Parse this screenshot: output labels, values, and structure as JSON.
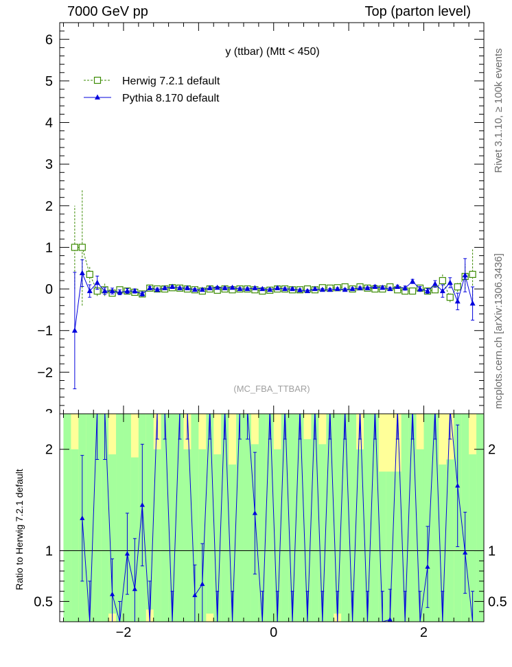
{
  "header": {
    "left": "7000 GeV pp",
    "right": "Top (parton level)"
  },
  "side": {
    "rivet": "Rivet 3.1.10, ≥ 100k events",
    "url": "mcplots.cern.ch [arXiv:1306.3436]"
  },
  "colors": {
    "herwig": "#3a8a00",
    "pythia": "#0000dd",
    "band_inner": "#a4ff9c",
    "band_outer": "#ffff99"
  },
  "chart_data": [
    {
      "type": "line",
      "title": "y (ttbar) (Mtt < 450)",
      "watermark": "(MC_FBA_TTBAR)",
      "xlim": [
        -2.85,
        2.8
      ],
      "ylim": [
        -3,
        6.4
      ],
      "yticks": [
        -2,
        -1,
        0,
        1,
        2,
        3,
        4,
        5,
        6
      ],
      "ytick_labels": [
        "−2",
        "−1",
        "0",
        "1",
        "2",
        "3",
        "4",
        "5",
        "6"
      ],
      "legend_position": "top-left",
      "grid": false,
      "x": [
        -2.65,
        -2.55,
        -2.45,
        -2.35,
        -2.25,
        -2.15,
        -2.05,
        -1.95,
        -1.85,
        -1.75,
        -1.65,
        -1.55,
        -1.45,
        -1.35,
        -1.25,
        -1.15,
        -1.05,
        -0.95,
        -0.85,
        -0.75,
        -0.65,
        -0.55,
        -0.45,
        -0.35,
        -0.25,
        -0.15,
        -0.05,
        0.05,
        0.15,
        0.25,
        0.35,
        0.45,
        0.55,
        0.65,
        0.75,
        0.85,
        0.95,
        1.05,
        1.15,
        1.25,
        1.35,
        1.45,
        1.55,
        1.65,
        1.75,
        1.85,
        1.95,
        2.05,
        2.15,
        2.25,
        2.35,
        2.45,
        2.55,
        2.65
      ],
      "series": [
        {
          "name": "Herwig 7.2.1 default",
          "marker": "open-square",
          "values": [
            1.0,
            1.0,
            0.35,
            -0.05,
            -0.02,
            -0.1,
            -0.02,
            -0.05,
            -0.08,
            -0.12,
            0.02,
            0.0,
            0.0,
            0.03,
            0.02,
            0.0,
            -0.02,
            -0.05,
            0.0,
            -0.03,
            0.0,
            -0.02,
            0.0,
            0.0,
            -0.02,
            -0.05,
            -0.03,
            0.0,
            0.0,
            -0.02,
            -0.02,
            0.0,
            -0.02,
            0.03,
            0.02,
            0.03,
            0.05,
            0.0,
            0.05,
            0.02,
            0.0,
            0.0,
            0.05,
            -0.02,
            -0.05,
            -0.05,
            0.02,
            -0.05,
            -0.02,
            0.2,
            -0.2,
            0.05,
            0.3,
            0.35
          ],
          "errors": [
            1.0,
            1.4,
            0.2,
            0.12,
            0.15,
            0.08,
            0.06,
            0.06,
            0.05,
            0.05,
            0.04,
            0.04,
            0.03,
            0.03,
            0.03,
            0.03,
            0.03,
            0.03,
            0.03,
            0.03,
            0.03,
            0.03,
            0.03,
            0.03,
            0.03,
            0.03,
            0.03,
            0.03,
            0.03,
            0.03,
            0.03,
            0.03,
            0.03,
            0.03,
            0.03,
            0.03,
            0.03,
            0.03,
            0.03,
            0.03,
            0.04,
            0.04,
            0.04,
            0.04,
            0.05,
            0.05,
            0.06,
            0.06,
            0.08,
            0.15,
            0.12,
            0.12,
            0.3,
            0.6
          ]
        },
        {
          "name": "Pythia 8.170 default",
          "marker": "filled-triangle",
          "values": [
            -1.0,
            0.38,
            -0.05,
            0.15,
            -0.05,
            -0.05,
            -0.08,
            -0.05,
            -0.05,
            -0.12,
            0.02,
            -0.02,
            0.02,
            0.05,
            0.02,
            0.02,
            -0.02,
            -0.02,
            0.02,
            0.03,
            0.02,
            0.03,
            0.0,
            0.0,
            0.02,
            0.0,
            -0.02,
            0.02,
            0.0,
            0.0,
            -0.03,
            -0.05,
            0.0,
            -0.02,
            -0.02,
            0.0,
            -0.02,
            0.0,
            0.02,
            0.02,
            0.05,
            0.03,
            0.0,
            0.05,
            0.02,
            0.18,
            0.0,
            -0.05,
            0.12,
            -0.05,
            0.15,
            -0.3,
            0.33,
            -0.35
          ],
          "errors": [
            1.4,
            0.32,
            0.15,
            0.16,
            0.08,
            0.07,
            0.06,
            0.06,
            0.05,
            0.05,
            0.04,
            0.04,
            0.03,
            0.03,
            0.03,
            0.03,
            0.03,
            0.03,
            0.03,
            0.03,
            0.03,
            0.03,
            0.03,
            0.03,
            0.03,
            0.03,
            0.03,
            0.03,
            0.03,
            0.03,
            0.03,
            0.03,
            0.03,
            0.03,
            0.03,
            0.03,
            0.03,
            0.03,
            0.03,
            0.03,
            0.04,
            0.04,
            0.04,
            0.04,
            0.05,
            0.05,
            0.06,
            0.06,
            0.08,
            0.15,
            0.12,
            0.2,
            0.4,
            0.4
          ]
        }
      ]
    },
    {
      "type": "line",
      "ylabel": "Ratio to Herwig 7.2.1 default",
      "xlim": [
        -2.85,
        2.8
      ],
      "ylim": [
        0.3,
        2.35
      ],
      "xticks": [
        -2,
        0,
        2
      ],
      "xtick_labels": [
        "−2",
        "0",
        "2"
      ],
      "yticks": [
        0.5,
        1,
        2
      ],
      "ytick_labels": [
        "0.5",
        "1",
        "2"
      ],
      "reference_line": 1,
      "x": [
        -2.75,
        -2.65,
        -2.55,
        -2.45,
        -2.35,
        -2.25,
        -2.15,
        -2.05,
        -1.95,
        -1.85,
        -1.75,
        -1.65,
        -1.55,
        -1.45,
        -1.35,
        -1.25,
        -1.15,
        -1.05,
        -0.95,
        -0.85,
        -0.75,
        -0.65,
        -0.55,
        -0.45,
        -0.35,
        -0.25,
        -0.15,
        -0.05,
        0.05,
        0.15,
        0.25,
        0.35,
        0.45,
        0.55,
        0.65,
        0.75,
        0.85,
        0.95,
        1.05,
        1.15,
        1.25,
        1.35,
        1.45,
        1.55,
        1.65,
        1.75,
        1.85,
        1.95,
        2.05,
        2.15,
        2.25,
        2.35,
        2.45,
        2.55,
        2.65,
        2.75
      ],
      "band_inner_upper": [
        2.35,
        2.0,
        2.35,
        2.35,
        2.35,
        2.35,
        1.95,
        2.35,
        2.35,
        1.92,
        2.35,
        2.35,
        2.0,
        2.35,
        2.35,
        2.35,
        2.0,
        2.35,
        2.0,
        2.35,
        1.95,
        2.35,
        1.85,
        2.35,
        2.35,
        2.05,
        2.35,
        2.35,
        2.0,
        2.35,
        2.35,
        2.35,
        2.1,
        2.35,
        2.05,
        2.35,
        2.35,
        2.35,
        2.35,
        2.0,
        2.35,
        2.35,
        1.78,
        1.78,
        1.78,
        2.35,
        2.35,
        2.0,
        2.35,
        2.35,
        1.85,
        1.9,
        2.35,
        2.35,
        1.95,
        2.35
      ],
      "band_outer_upper": [
        2.35,
        2.35,
        2.35,
        2.35,
        2.35,
        2.35,
        2.35,
        2.35,
        2.35,
        2.35,
        2.35,
        2.35,
        2.35,
        2.35,
        2.35,
        2.35,
        2.35,
        2.35,
        2.35,
        2.35,
        2.35,
        2.35,
        2.35,
        2.35,
        2.35,
        2.35,
        2.35,
        2.35,
        2.35,
        2.35,
        2.35,
        2.35,
        2.35,
        2.35,
        2.35,
        2.35,
        2.35,
        2.35,
        2.35,
        2.35,
        2.35,
        2.35,
        2.35,
        2.35,
        2.35,
        2.35,
        2.35,
        2.35,
        2.35,
        2.35,
        2.35,
        2.35,
        2.35,
        2.35,
        2.35,
        2.35
      ],
      "band_inner_lower": [
        0.3,
        0.3,
        0.3,
        0.3,
        0.3,
        0.3,
        0.38,
        0.3,
        0.3,
        0.3,
        0.3,
        0.42,
        0.3,
        0.3,
        0.3,
        0.3,
        0.3,
        0.3,
        0.3,
        0.38,
        0.3,
        0.3,
        0.3,
        0.3,
        0.3,
        0.3,
        0.3,
        0.3,
        0.3,
        0.3,
        0.3,
        0.3,
        0.3,
        0.3,
        0.3,
        0.3,
        0.38,
        0.3,
        0.3,
        0.3,
        0.3,
        0.3,
        0.3,
        0.3,
        0.3,
        0.3,
        0.3,
        0.3,
        0.3,
        0.3,
        0.3,
        0.3,
        0.3,
        0.3,
        0.3,
        0.3
      ],
      "band_outer_lower": [
        0.3,
        0.3,
        0.3,
        0.3,
        0.3,
        0.3,
        0.3,
        0.3,
        0.3,
        0.3,
        0.3,
        0.3,
        0.3,
        0.3,
        0.3,
        0.3,
        0.3,
        0.3,
        0.3,
        0.3,
        0.3,
        0.3,
        0.3,
        0.3,
        0.3,
        0.3,
        0.3,
        0.3,
        0.3,
        0.3,
        0.3,
        0.3,
        0.3,
        0.3,
        0.3,
        0.3,
        0.3,
        0.3,
        0.3,
        0.3,
        0.3,
        0.3,
        0.3,
        0.3,
        0.3,
        0.3,
        0.3,
        0.3,
        0.3,
        0.3,
        0.3,
        0.3,
        0.3,
        0.3,
        0.3,
        0.3
      ],
      "ratio_x": [
        -2.55,
        -2.45,
        -2.35,
        -2.25,
        -2.15,
        -2.05,
        -1.95,
        -1.85,
        -1.75,
        -1.65,
        -1.55,
        -1.45,
        -1.35,
        -1.25,
        -1.15,
        -1.05,
        -0.95,
        -0.85,
        -0.75,
        -0.65,
        -0.55,
        -0.45,
        -0.35,
        -0.25,
        -0.15,
        -0.05,
        0.05,
        0.15,
        0.25,
        0.35,
        0.45,
        0.55,
        0.65,
        0.75,
        0.85,
        0.95,
        1.05,
        1.15,
        1.25,
        1.35,
        1.45,
        1.55,
        1.65,
        1.75,
        1.85,
        1.95,
        2.05,
        2.15,
        2.25,
        2.35,
        2.45,
        2.55,
        2.65
      ],
      "ratio_values": [
        1.32,
        0.3,
        2.4,
        2.4,
        0.57,
        0.3,
        0.97,
        0.62,
        1.45,
        0.3,
        2.4,
        2.4,
        0.3,
        2.4,
        2.4,
        0.56,
        0.67,
        2.4,
        0.3,
        2.4,
        0.3,
        2.4,
        2.4,
        1.37,
        0.3,
        2.4,
        0.3,
        2.4,
        0.3,
        2.4,
        0.3,
        2.4,
        0.3,
        2.4,
        0.3,
        2.4,
        0.3,
        2.4,
        0.3,
        2.4,
        0.3,
        0.32,
        2.4,
        0.3,
        2.4,
        0.3,
        0.84,
        2.4,
        0.3,
        2.4,
        1.64,
        0.98,
        0.3
      ],
      "ratio_errors": [
        0.62,
        0.4,
        0.5,
        0.5,
        0.35,
        0.2,
        0.4,
        0.5,
        0.6,
        0.4,
        0.3,
        0.3,
        0.3,
        0.3,
        0.3,
        0.3,
        0.4,
        0.3,
        0.3,
        0.3,
        0.3,
        0.3,
        0.3,
        0.6,
        0.3,
        0.3,
        0.3,
        0.3,
        0.3,
        0.3,
        0.3,
        0.3,
        0.3,
        0.3,
        0.3,
        0.3,
        0.3,
        0.3,
        0.3,
        0.3,
        0.3,
        0.3,
        0.3,
        0.3,
        0.3,
        0.3,
        0.4,
        0.3,
        0.3,
        0.3,
        0.6,
        0.4,
        0.3
      ]
    }
  ]
}
